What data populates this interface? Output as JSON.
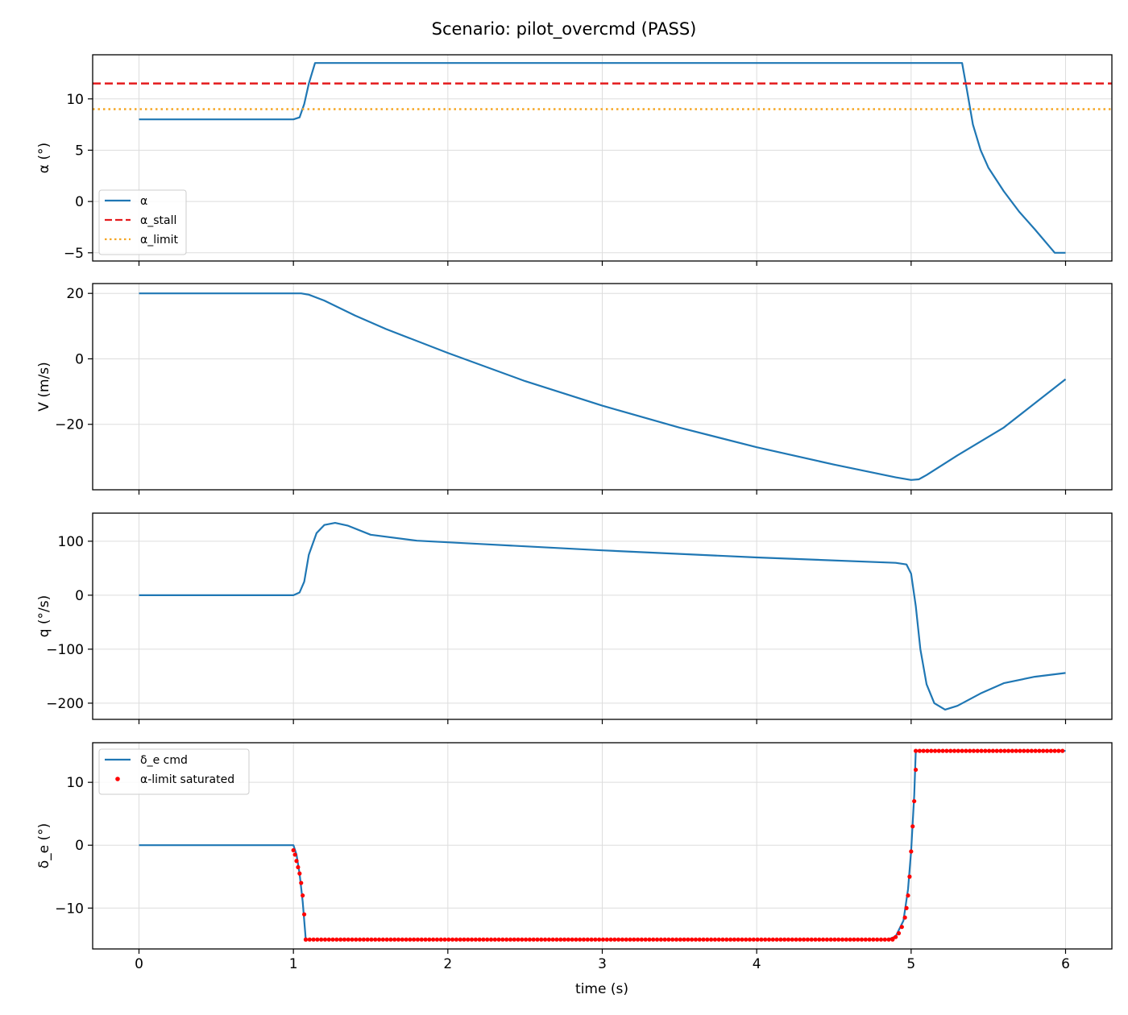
{
  "title": "Scenario: pilot_overcmd  (PASS)",
  "colors": {
    "signal": "#1f77b4",
    "stall": "#e41a1c",
    "limit": "#f5a623",
    "sat": "#ff0000"
  },
  "chart_data": {
    "type": "line",
    "xlabel": "time (s)",
    "xlim": [
      -0.3,
      6.3
    ],
    "xticks": [
      0,
      1,
      2,
      3,
      4,
      5,
      6
    ],
    "grid": true,
    "panels": [
      {
        "ylabel": "α (°)",
        "ylim": [
          -5.8,
          14.3
        ],
        "yticks": [
          -5,
          0,
          5,
          10
        ],
        "legend": "lower-left",
        "series": [
          {
            "name": "α",
            "style": "line",
            "color": "#1f77b4",
            "x": [
              0,
              1.0,
              1.04,
              1.07,
              1.1,
              1.14,
              1.5,
              2,
              3,
              4,
              5,
              5.33,
              5.36,
              5.4,
              5.45,
              5.5,
              5.6,
              5.7,
              5.8,
              5.93,
              6.0
            ],
            "y": [
              8,
              8,
              8.2,
              9.5,
              11.5,
              13.5,
              13.5,
              13.5,
              13.5,
              13.5,
              13.5,
              13.5,
              11.0,
              7.5,
              5.0,
              3.3,
              1.0,
              -1.0,
              -2.7,
              -5.0,
              -5.0
            ]
          },
          {
            "name": "α_stall",
            "style": "dashed",
            "color": "#e41a1c",
            "hline": 11.5
          },
          {
            "name": "α_limit",
            "style": "dotted",
            "color": "#f5a623",
            "hline": 9.0
          }
        ]
      },
      {
        "ylabel": "V (m/s)",
        "ylim": [
          -40,
          23
        ],
        "yticks": [
          -20,
          0,
          20
        ],
        "series": [
          {
            "name": "",
            "style": "line",
            "color": "#1f77b4",
            "x": [
              0,
              1.0,
              1.05,
              1.1,
              1.2,
              1.4,
              1.6,
              2,
              2.5,
              3,
              3.5,
              4,
              4.5,
              4.9,
              5.0,
              5.05,
              5.1,
              5.3,
              5.6,
              6.0
            ],
            "y": [
              20,
              20,
              20,
              19.6,
              17.8,
              13.2,
              9.1,
              1.8,
              -6.8,
              -14.3,
              -21.0,
              -27.0,
              -32.3,
              -36.2,
              -37.0,
              -36.8,
              -35.5,
              -29.5,
              -21.0,
              -6.2
            ]
          }
        ]
      },
      {
        "ylabel": "q (°/s)",
        "ylim": [
          -230,
          152
        ],
        "yticks": [
          -200,
          -100,
          0,
          100
        ],
        "series": [
          {
            "name": "",
            "style": "line",
            "color": "#1f77b4",
            "x": [
              0,
              1.0,
              1.04,
              1.07,
              1.1,
              1.15,
              1.2,
              1.27,
              1.35,
              1.5,
              1.8,
              2.2,
              3,
              4,
              4.9,
              4.97,
              5.0,
              5.03,
              5.06,
              5.1,
              5.15,
              5.22,
              5.3,
              5.45,
              5.6,
              5.8,
              6.0
            ],
            "y": [
              0,
              0,
              5,
              25,
              75,
              115,
              130,
              134,
              129,
              112,
              101,
              95,
              83,
              70,
              60,
              57,
              40,
              -20,
              -100,
              -165,
              -200,
              -212,
              -205,
              -182,
              -163,
              -151,
              -144
            ]
          }
        ]
      },
      {
        "ylabel": "δ_e (°)",
        "ylim": [
          -16.5,
          16.3
        ],
        "yticks": [
          -10,
          0,
          10
        ],
        "legend": "upper-left",
        "series": [
          {
            "name": "δ_e cmd",
            "style": "line",
            "color": "#1f77b4",
            "x": [
              0,
              1.0,
              1.02,
              1.04,
              1.06,
              1.08,
              1.1,
              4.85,
              4.9,
              4.95,
              4.98,
              5.0,
              5.02,
              5.03,
              5.06,
              6.0
            ],
            "y": [
              0,
              0,
              -1.5,
              -4.5,
              -9.0,
              -15.0,
              -15.0,
              -15.0,
              -14.5,
              -12.0,
              -7.0,
              -1.0,
              8.0,
              15.0,
              15.0,
              15.0
            ]
          },
          {
            "name": "α-limit saturated",
            "style": "markers",
            "color": "#ff0000",
            "segments": [
              {
                "x": [
                  1.0,
                  1.01,
                  1.02,
                  1.03,
                  1.04,
                  1.05,
                  1.06,
                  1.07,
                  1.08
                ],
                "y": [
                  -0.8,
                  -1.5,
                  -2.5,
                  -3.5,
                  -4.5,
                  -6.0,
                  -8.0,
                  -11.0,
                  -15.0
                ]
              },
              {
                "x0": 1.08,
                "x1": 4.88,
                "step": 0.025,
                "y": -15
              },
              {
                "x": [
                  4.88,
                  4.9,
                  4.92,
                  4.94,
                  4.96,
                  4.97,
                  4.98,
                  4.99,
                  5.0,
                  5.01,
                  5.02,
                  5.03
                ],
                "y": [
                  -14.9,
                  -14.6,
                  -14.0,
                  -13.0,
                  -11.5,
                  -10.0,
                  -8.0,
                  -5.0,
                  -1.0,
                  3.0,
                  7.0,
                  12.0
                ]
              },
              {
                "x0": 5.03,
                "x1": 6.0,
                "step": 0.025,
                "y": 15
              }
            ]
          }
        ]
      }
    ]
  }
}
